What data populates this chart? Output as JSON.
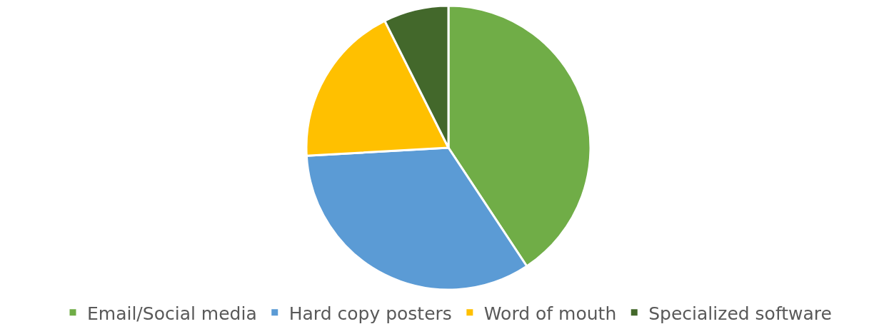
{
  "chart_data": {
    "type": "pie",
    "categories": [
      "Email/Social media",
      "Hard copy posters",
      "Word of mouth",
      "Specialized software"
    ],
    "values": [
      40.7,
      33.4,
      18.5,
      7.4
    ],
    "colors": [
      "#70ad47",
      "#5b9bd5",
      "#ffc000",
      "#43682b"
    ],
    "legend": "bottom"
  }
}
